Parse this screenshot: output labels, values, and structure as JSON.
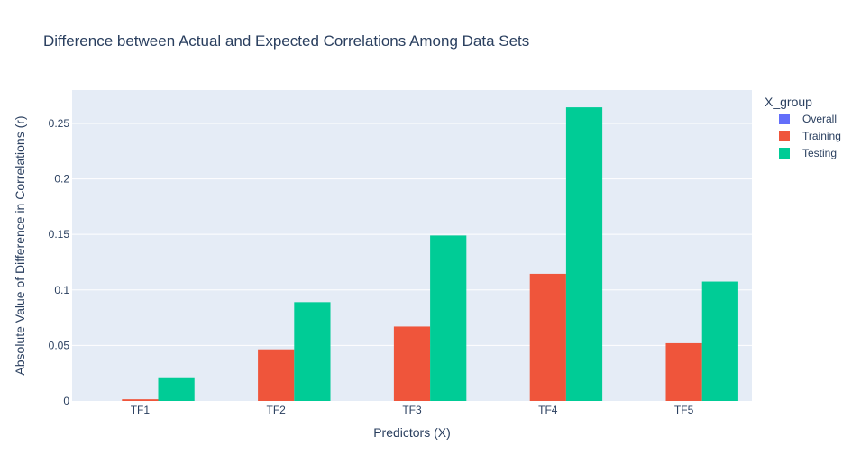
{
  "chart_data": {
    "type": "bar",
    "title": "Difference between Actual and Expected Correlations Among Data Sets",
    "xlabel": "Predictors (X)",
    "ylabel": "Absolute Value of Difference in Correlations (r)",
    "categories": [
      "TF1",
      "TF2",
      "TF3",
      "TF4",
      "TF5"
    ],
    "ylim": [
      0,
      0.28
    ],
    "yticks": [
      0,
      0.05,
      0.1,
      0.15,
      0.2,
      0.25
    ],
    "ytick_labels": [
      "0",
      "0.05",
      "0.1",
      "0.15",
      "0.2",
      "0.25"
    ],
    "legend_title": "X_group",
    "legend_position": "right",
    "grid": true,
    "series": [
      {
        "name": "Overall",
        "color": "#636efa",
        "values": [
          0,
          0,
          0,
          0,
          0
        ]
      },
      {
        "name": "Training",
        "color": "#ef553b",
        "values": [
          0.0015,
          0.0465,
          0.067,
          0.1145,
          0.052
        ]
      },
      {
        "name": "Testing",
        "color": "#00cc96",
        "values": [
          0.0205,
          0.089,
          0.149,
          0.2645,
          0.1075
        ]
      }
    ]
  }
}
